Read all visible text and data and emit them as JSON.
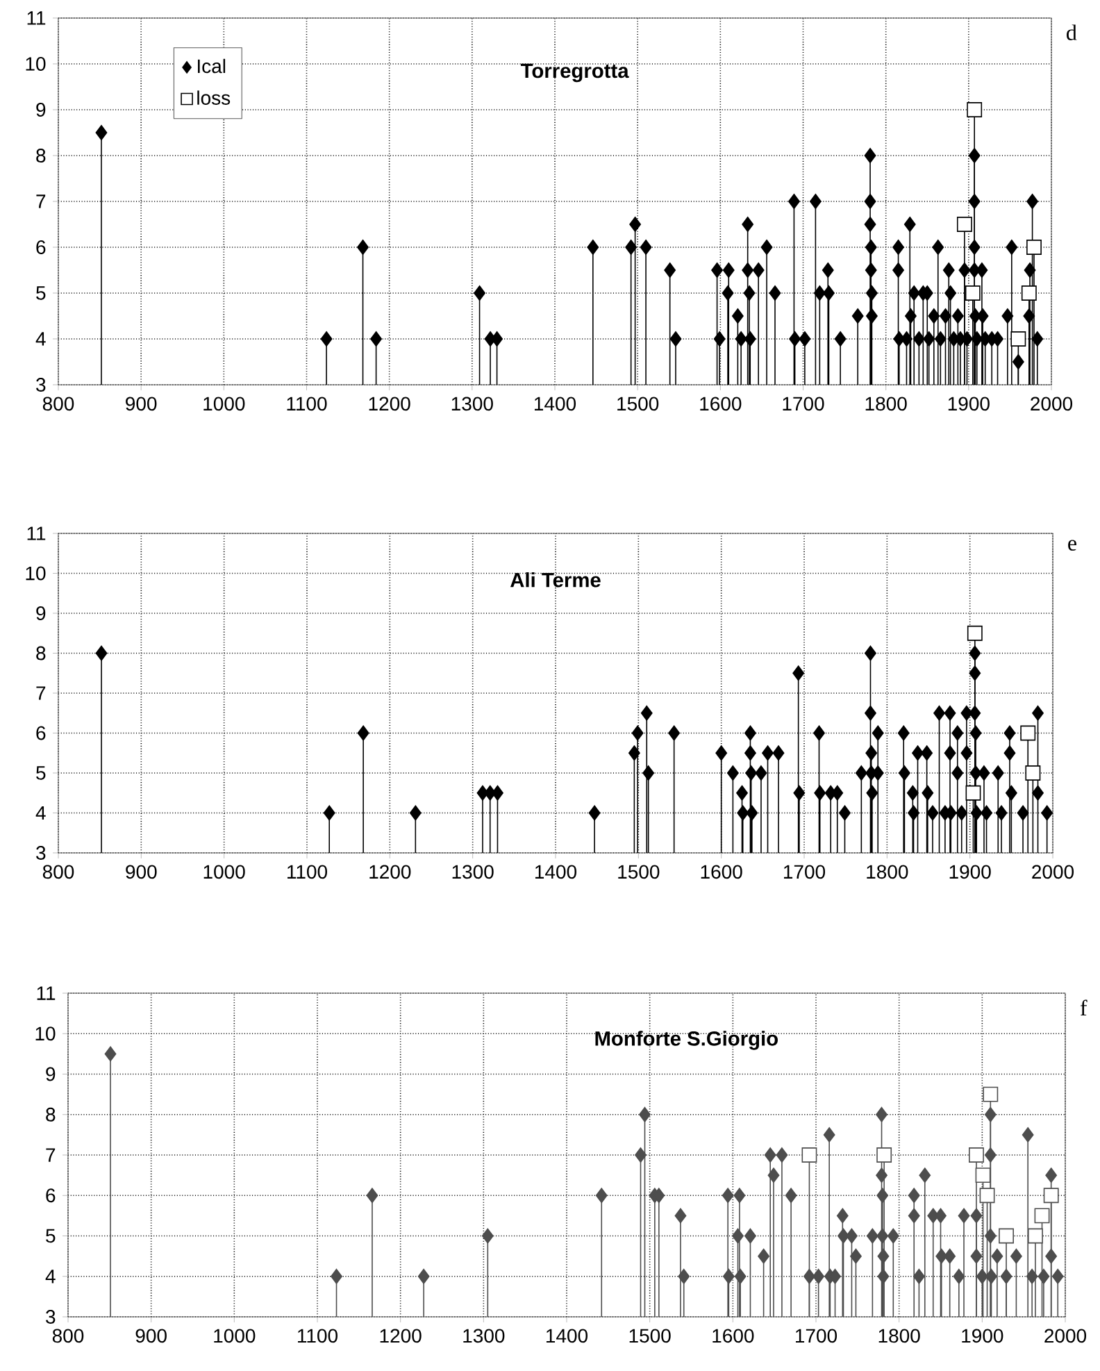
{
  "chart_data": [
    {
      "type": "lollipop",
      "title": "Torregrotta",
      "annotations": [
        "d"
      ],
      "xlim": [
        800,
        2000
      ],
      "ylim": [
        3,
        11
      ],
      "xticks": [
        800,
        900,
        1000,
        1100,
        1200,
        1300,
        1400,
        1500,
        1600,
        1700,
        1800,
        1900,
        2000
      ],
      "yticks": [
        3,
        4,
        5,
        6,
        7,
        8,
        9,
        10,
        11
      ],
      "grid": true,
      "legend": "top left",
      "series": [
        {
          "name": "Ical",
          "color": "#000000",
          "marker": "diamond",
          "x": [
            852,
            1124,
            1168,
            1184,
            1309,
            1322,
            1330,
            1446,
            1492,
            1497,
            1510,
            1539,
            1546,
            1596,
            1599,
            1609,
            1610,
            1621,
            1625,
            1633,
            1633,
            1635,
            1636,
            1646,
            1656,
            1666,
            1689,
            1690,
            1702,
            1715,
            1720,
            1730,
            1731,
            1745,
            1766,
            1781,
            1781,
            1781,
            1782,
            1782,
            1783,
            1783,
            1815,
            1815,
            1816,
            1825,
            1829,
            1830,
            1834,
            1840,
            1845,
            1850,
            1852,
            1858,
            1863,
            1866,
            1872,
            1876,
            1878,
            1882,
            1887,
            1890,
            1895,
            1898,
            1907,
            1907,
            1907,
            1907,
            1908,
            1910,
            1916,
            1917,
            1920,
            1928,
            1935,
            1947,
            1952,
            1960,
            1973,
            1974,
            1977,
            1983
          ],
          "values": [
            8.5,
            4,
            6,
            4,
            5,
            4,
            4,
            6,
            6,
            6.5,
            6,
            5.5,
            4,
            5.5,
            4,
            5,
            5.5,
            4.5,
            4,
            6.5,
            5.5,
            5,
            4,
            5.5,
            6,
            5,
            7,
            4,
            4,
            7,
            5,
            5.5,
            5,
            4,
            4.5,
            8,
            7,
            6.5,
            6,
            5.5,
            5,
            4.5,
            6,
            5.5,
            4,
            4,
            6.5,
            4.5,
            5,
            4,
            5,
            5,
            4,
            4.5,
            6,
            4,
            4.5,
            5.5,
            5,
            4,
            4.5,
            4,
            5.5,
            4,
            8,
            7,
            6,
            5.5,
            4.5,
            4,
            5.5,
            4.5,
            4,
            4,
            4,
            4.5,
            6,
            3.5,
            4.5,
            5.5,
            7,
            4
          ]
        },
        {
          "name": "loss",
          "color": "#ffffff",
          "marker": "square",
          "x": [
            1895,
            1905,
            1907,
            1960,
            1973,
            1979
          ],
          "values": [
            6.5,
            5,
            9,
            4,
            5,
            6
          ]
        }
      ]
    },
    {
      "type": "lollipop",
      "title": "Ali Terme",
      "annotations": [
        "e"
      ],
      "xlim": [
        800,
        2000
      ],
      "ylim": [
        3,
        11
      ],
      "xticks": [
        800,
        900,
        1000,
        1100,
        1200,
        1300,
        1400,
        1500,
        1600,
        1700,
        1800,
        1900,
        2000
      ],
      "yticks": [
        3,
        4,
        5,
        6,
        7,
        8,
        9,
        10,
        11
      ],
      "grid": true,
      "series": [
        {
          "color": "#000000",
          "marker": "diamond",
          "x": [
            852,
            1127,
            1168,
            1231,
            1312,
            1321,
            1330,
            1447,
            1495,
            1499,
            1510,
            1512,
            1543,
            1600,
            1614,
            1625,
            1626,
            1635,
            1635,
            1636,
            1637,
            1648,
            1656,
            1669,
            1693,
            1694,
            1718,
            1719,
            1732,
            1740,
            1749,
            1769,
            1780,
            1780,
            1781,
            1781,
            1782,
            1789,
            1789,
            1820,
            1821,
            1831,
            1832,
            1837,
            1848,
            1849,
            1855,
            1863,
            1870,
            1876,
            1876,
            1877,
            1885,
            1885,
            1890,
            1896,
            1896,
            1906,
            1906,
            1906,
            1907,
            1907,
            1908,
            1917,
            1920,
            1934,
            1938,
            1948,
            1948,
            1950,
            1964,
            1982,
            1982,
            1993
          ],
          "values": [
            8,
            4,
            6,
            4,
            4.5,
            4.5,
            4.5,
            4,
            5.5,
            6,
            6.5,
            5,
            6,
            5.5,
            5,
            4.5,
            4,
            6,
            5.5,
            5,
            4,
            5,
            5.5,
            5.5,
            7.5,
            4.5,
            6,
            4.5,
            4.5,
            4.5,
            4,
            5,
            8,
            6.5,
            5.5,
            5,
            4.5,
            6,
            5,
            6,
            5,
            4.5,
            4,
            5.5,
            5.5,
            4.5,
            4,
            6.5,
            4,
            6.5,
            5.5,
            4,
            6,
            5,
            4,
            6.5,
            5.5,
            8,
            7.5,
            6.5,
            6,
            5,
            4,
            5,
            4,
            5,
            4,
            6,
            5.5,
            4.5,
            4,
            6.5,
            4.5,
            4
          ]
        },
        {
          "color": "#ffffff",
          "marker": "square",
          "x": [
            1904,
            1906,
            1970,
            1976
          ],
          "values": [
            4.5,
            8.5,
            6,
            5
          ]
        }
      ]
    },
    {
      "type": "lollipop",
      "title": "Monforte S.Giorgio",
      "annotations": [
        "f"
      ],
      "xlim": [
        800,
        2000
      ],
      "ylim": [
        3,
        11
      ],
      "xticks": [
        800,
        900,
        1000,
        1100,
        1200,
        1300,
        1400,
        1500,
        1600,
        1700,
        1800,
        1900,
        2000
      ],
      "yticks": [
        3,
        4,
        5,
        6,
        7,
        8,
        9,
        10,
        11
      ],
      "grid": true,
      "series": [
        {
          "color": "#4d4d4d",
          "marker": "diamond",
          "x": [
            851,
            1123,
            1166,
            1228,
            1305,
            1442,
            1489,
            1494,
            1506,
            1511,
            1537,
            1541,
            1594,
            1595,
            1606,
            1608,
            1609,
            1621,
            1637,
            1645,
            1649,
            1659,
            1670,
            1692,
            1703,
            1716,
            1717,
            1723,
            1732,
            1733,
            1743,
            1748,
            1768,
            1779,
            1779,
            1780,
            1780,
            1781,
            1781,
            1793,
            1818,
            1818,
            1824,
            1831,
            1841,
            1850,
            1851,
            1861,
            1872,
            1878,
            1893,
            1893,
            1900,
            1910,
            1910,
            1910,
            1911,
            1918,
            1929,
            1941,
            1955,
            1960,
            1974,
            1983,
            1983,
            1991
          ],
          "values": [
            9.5,
            4,
            6,
            4,
            5,
            6,
            7,
            8,
            6,
            6,
            5.5,
            4,
            6,
            4,
            5,
            6,
            4,
            5,
            4.5,
            7,
            6.5,
            7,
            6,
            4,
            4,
            7.5,
            4,
            4,
            5.5,
            5,
            5,
            4.5,
            5,
            8,
            6.5,
            6,
            5,
            4.5,
            4,
            5,
            6,
            5.5,
            4,
            6.5,
            5.5,
            5.5,
            4.5,
            4.5,
            4,
            5.5,
            5.5,
            4.5,
            4,
            8,
            7,
            5,
            4,
            4.5,
            4,
            4.5,
            7.5,
            4,
            4,
            6.5,
            4.5,
            4
          ]
        },
        {
          "color": "#ffffff",
          "marker": "square",
          "x": [
            1692,
            1782,
            1893,
            1901,
            1906,
            1910,
            1929,
            1964,
            1972,
            1983
          ],
          "values": [
            7,
            7,
            7,
            6.5,
            6,
            8.5,
            5,
            5,
            5.5,
            6
          ]
        }
      ]
    }
  ]
}
